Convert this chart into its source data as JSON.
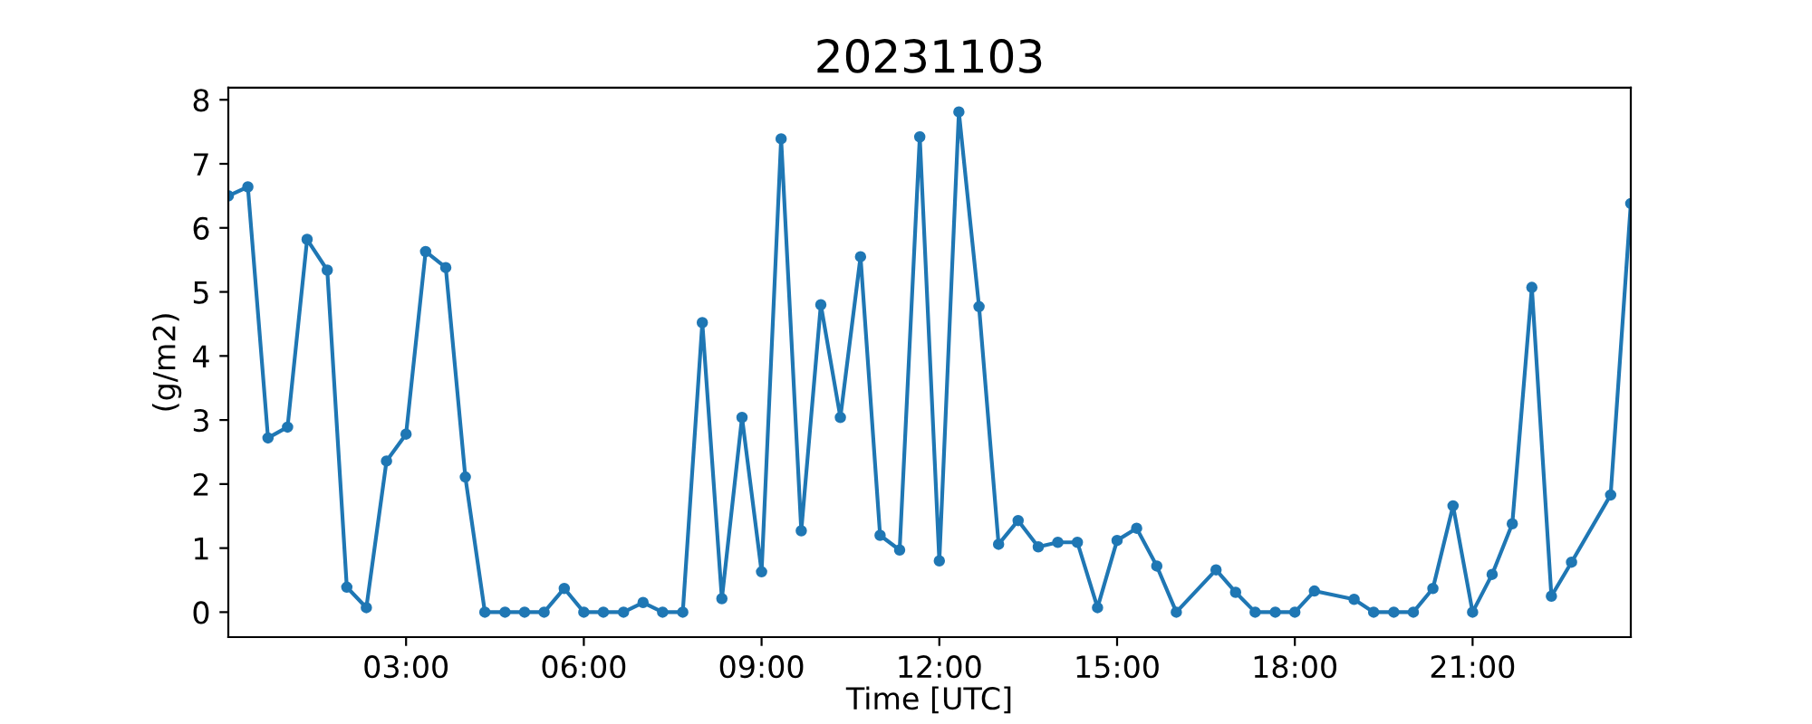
{
  "chart_data": {
    "type": "line",
    "title": "20231103",
    "xlabel": "Time [UTC]",
    "ylabel": "(g/m2)",
    "x": [
      0,
      0.33,
      0.67,
      1,
      1.33,
      1.67,
      2,
      2.33,
      2.67,
      3,
      3.33,
      3.67,
      4,
      4.33,
      4.67,
      5,
      5.33,
      5.67,
      6,
      6.33,
      6.67,
      7,
      7.33,
      7.67,
      8,
      8.33,
      8.67,
      9,
      9.33,
      9.67,
      10,
      10.33,
      10.67,
      11,
      11.33,
      11.67,
      12,
      12.33,
      12.67,
      13,
      13.33,
      13.67,
      14,
      14.33,
      14.67,
      15,
      15.33,
      15.67,
      16,
      16.67,
      17,
      17.33,
      17.67,
      18,
      18.33,
      19,
      19.33,
      19.67,
      20,
      20.33,
      20.67,
      21,
      21.33,
      21.67,
      22,
      22.33,
      22.67,
      23.33,
      23.67
    ],
    "series": [
      {
        "color": "#1f77b4",
        "values": [
          6.5,
          6.64,
          2.72,
          2.89,
          5.82,
          5.34,
          0.39,
          0.07,
          2.36,
          2.78,
          5.63,
          5.38,
          2.11,
          0,
          0,
          0,
          0,
          0.37,
          0,
          0,
          0,
          0.15,
          0,
          0,
          4.52,
          0.21,
          3.04,
          0.63,
          7.39,
          1.27,
          4.8,
          3.04,
          5.55,
          1.2,
          0.97,
          7.42,
          0.8,
          7.81,
          4.77,
          1.06,
          1.43,
          1.02,
          1.09,
          1.09,
          0.07,
          1.12,
          1.31,
          0.72,
          0,
          0.66,
          0.31,
          0,
          0,
          0,
          0.33,
          0.2,
          0,
          0,
          0,
          0.37,
          1.66,
          0,
          0.59,
          1.38,
          5.07,
          0.25,
          0.78,
          1.83,
          6.38
        ]
      }
    ],
    "xlim": [
      0,
      23.67
    ],
    "xticks": [
      {
        "value": 3,
        "label": "03:00"
      },
      {
        "value": 6,
        "label": "06:00"
      },
      {
        "value": 9,
        "label": "09:00"
      },
      {
        "value": 12,
        "label": "12:00"
      },
      {
        "value": 15,
        "label": "15:00"
      },
      {
        "value": 18,
        "label": "18:00"
      },
      {
        "value": 21,
        "label": "21:00"
      }
    ],
    "ylim": [
      -0.39,
      8.19
    ],
    "yticks": [
      0,
      1,
      2,
      3,
      4,
      5,
      6,
      7,
      8
    ],
    "marker": "circle",
    "line_style": "solid",
    "grid": false
  }
}
